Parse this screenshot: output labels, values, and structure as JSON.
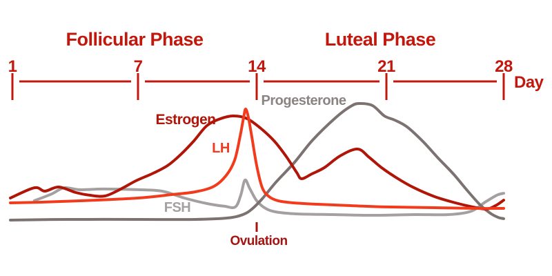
{
  "colors": {
    "axis_red": "#C2170C",
    "estrogen_red": "#B01508",
    "lh_red": "#F23B1D",
    "fsh_gray": "#A5A0A0",
    "progesterone_gray": "#7C7271",
    "ovulation_red": "#A41410",
    "background": "#FFFFFF"
  },
  "chart_data": {
    "type": "line",
    "title": "",
    "xlabel": "Day",
    "x_ticks": [
      1,
      7,
      14,
      21,
      28
    ],
    "x_range": [
      1,
      28
    ],
    "y_axis_note": "unlabeled relative hormone level, 0-100",
    "ylim": [
      0,
      100
    ],
    "grid": false,
    "legend": "inline curve labels",
    "phases": [
      {
        "label": "Follicular Phase",
        "span_days": [
          1,
          14
        ]
      },
      {
        "label": "Luteal Phase",
        "span_days": [
          14,
          28
        ]
      }
    ],
    "annotations": [
      {
        "label": "Ovulation",
        "day": 14
      }
    ],
    "series": [
      {
        "name": "FSH",
        "color": "#A5A0A0",
        "points": [
          [
            2.05,
            17.1
          ],
          [
            2.88,
            22.9
          ],
          [
            3.47,
            28.2
          ],
          [
            4.2,
            26.5
          ],
          [
            5.35,
            27.1
          ],
          [
            7,
            26.5
          ],
          [
            8.42,
            25.3
          ],
          [
            9.73,
            19.4
          ],
          [
            11.07,
            14.7
          ],
          [
            12.09,
            12.4
          ],
          [
            12.74,
            11.8
          ],
          [
            13.06,
            21.8
          ],
          [
            13.31,
            34.7
          ],
          [
            13.59,
            27.6
          ],
          [
            14,
            17.1
          ],
          [
            14.48,
            10.6
          ],
          [
            15.04,
            7.6
          ],
          [
            16.16,
            5.9
          ],
          [
            18.02,
            5.3
          ],
          [
            20.25,
            4.7
          ],
          [
            22.65,
            5.3
          ],
          [
            24.71,
            5.3
          ],
          [
            26.06,
            8.2
          ],
          [
            26.89,
            15.9
          ],
          [
            27.59,
            21.8
          ],
          [
            28,
            23.5
          ]
        ]
      },
      {
        "name": "Progesterone",
        "color": "#7C7271",
        "points": [
          [
            0.9,
            0.6
          ],
          [
            3.7,
            1.2
          ],
          [
            7,
            1.2
          ],
          [
            10.38,
            1.2
          ],
          [
            12.29,
            2.4
          ],
          [
            13.19,
            5.3
          ],
          [
            13.72,
            10
          ],
          [
            14.3,
            18.8
          ],
          [
            15.04,
            32.9
          ],
          [
            16.05,
            50
          ],
          [
            17.02,
            68.8
          ],
          [
            18.28,
            88.2
          ],
          [
            19.14,
            98.2
          ],
          [
            19.62,
            100
          ],
          [
            20.26,
            98.2
          ],
          [
            20.89,
            89.4
          ],
          [
            21.49,
            85.9
          ],
          [
            22.24,
            80
          ],
          [
            23.14,
            68.2
          ],
          [
            24.09,
            53.5
          ],
          [
            25.03,
            39.4
          ],
          [
            25.86,
            25.3
          ],
          [
            26.64,
            12.9
          ],
          [
            27.26,
            5.9
          ],
          [
            27.67,
            2.9
          ],
          [
            28,
            1.8
          ]
        ]
      },
      {
        "name": "Estrogen",
        "color": "#B01508",
        "points": [
          [
            0.9,
            19.4
          ],
          [
            2.05,
            28.2
          ],
          [
            2.55,
            25.3
          ],
          [
            3.21,
            28.8
          ],
          [
            4.03,
            24.1
          ],
          [
            4.69,
            21.8
          ],
          [
            5.42,
            21.2
          ],
          [
            6.18,
            27.1
          ],
          [
            6.9,
            34.1
          ],
          [
            7.9,
            40.6
          ],
          [
            8.75,
            47.1
          ],
          [
            9.52,
            56.5
          ],
          [
            10.3,
            68.2
          ],
          [
            11.07,
            81.2
          ],
          [
            11.88,
            87.1
          ],
          [
            12.62,
            89.4
          ],
          [
            13.43,
            87.1
          ],
          [
            14.22,
            78.8
          ],
          [
            14.97,
            67.6
          ],
          [
            15.6,
            54.7
          ],
          [
            16.16,
            41.2
          ],
          [
            16.42,
            35.9
          ],
          [
            16.98,
            40
          ],
          [
            17.65,
            45.3
          ],
          [
            18.5,
            55.3
          ],
          [
            19.44,
            61.2
          ],
          [
            20.07,
            54.1
          ],
          [
            20.74,
            45.3
          ],
          [
            21.62,
            36.5
          ],
          [
            22.65,
            28.2
          ],
          [
            23.88,
            20.6
          ],
          [
            25.12,
            15.3
          ],
          [
            26.15,
            11.8
          ],
          [
            26.97,
            10
          ],
          [
            27.51,
            12.9
          ],
          [
            28,
            17.6
          ]
        ]
      },
      {
        "name": "LH",
        "color": "#F23B1D",
        "points": [
          [
            0.9,
            15.3
          ],
          [
            2.38,
            15.9
          ],
          [
            4.36,
            17.1
          ],
          [
            7,
            19.4
          ],
          [
            9.03,
            22.4
          ],
          [
            10.38,
            24.7
          ],
          [
            11.48,
            29.4
          ],
          [
            12.21,
            38.8
          ],
          [
            12.7,
            51.8
          ],
          [
            13.02,
            71.8
          ],
          [
            13.23,
            88.2
          ],
          [
            13.35,
            95.3
          ],
          [
            13.51,
            88.2
          ],
          [
            13.71,
            71.8
          ],
          [
            14,
            47.1
          ],
          [
            14.3,
            28.2
          ],
          [
            14.67,
            20.6
          ],
          [
            15.15,
            17.1
          ],
          [
            15.97,
            15.3
          ],
          [
            17.28,
            14.1
          ],
          [
            19.14,
            12.9
          ],
          [
            21,
            11.8
          ],
          [
            23.88,
            11.2
          ],
          [
            26.35,
            10.6
          ],
          [
            28,
            10.6
          ]
        ]
      }
    ]
  },
  "labels": {
    "estrogen": "Estrogen",
    "lh": "LH",
    "fsh": "FSH",
    "progesterone": "Progesterone",
    "ovulation": "Ovulation",
    "day_word": "Day"
  }
}
